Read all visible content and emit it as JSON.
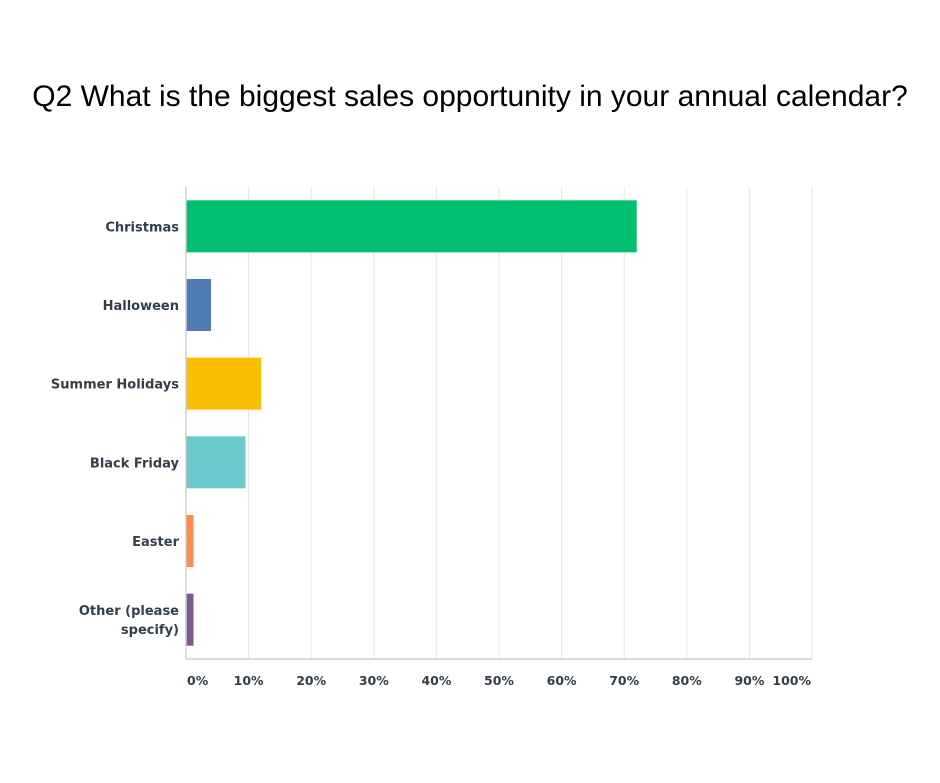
{
  "chart_data": {
    "type": "bar",
    "orientation": "horizontal",
    "title": "Q2 What is the biggest sales opportunity in your annual calendar?",
    "categories": [
      "Christmas",
      "Halloween",
      "Summer Holidays",
      "Black Friday",
      "Easter",
      "Other (please specify)"
    ],
    "category_lines": [
      [
        "Christmas"
      ],
      [
        "Halloween"
      ],
      [
        "Summer Holidays"
      ],
      [
        "Black Friday"
      ],
      [
        "Easter"
      ],
      [
        "Other (please",
        "specify)"
      ]
    ],
    "values": [
      72,
      4,
      12,
      9.5,
      1.2,
      1.2
    ],
    "colors": [
      "#00bf6f",
      "#507cb6",
      "#f9be00",
      "#6bc8cd",
      "#ff8b4f",
      "#7d5a92"
    ],
    "x_ticks": [
      0,
      10,
      20,
      30,
      40,
      50,
      60,
      70,
      80,
      90,
      100
    ],
    "x_tick_labels": [
      "0%",
      "10%",
      "20%",
      "30%",
      "40%",
      "50%",
      "60%",
      "70%",
      "80%",
      "90%",
      "100%"
    ],
    "xlim": [
      0,
      100
    ],
    "xlabel": "",
    "ylabel": "",
    "grid": true,
    "legend": "none"
  }
}
